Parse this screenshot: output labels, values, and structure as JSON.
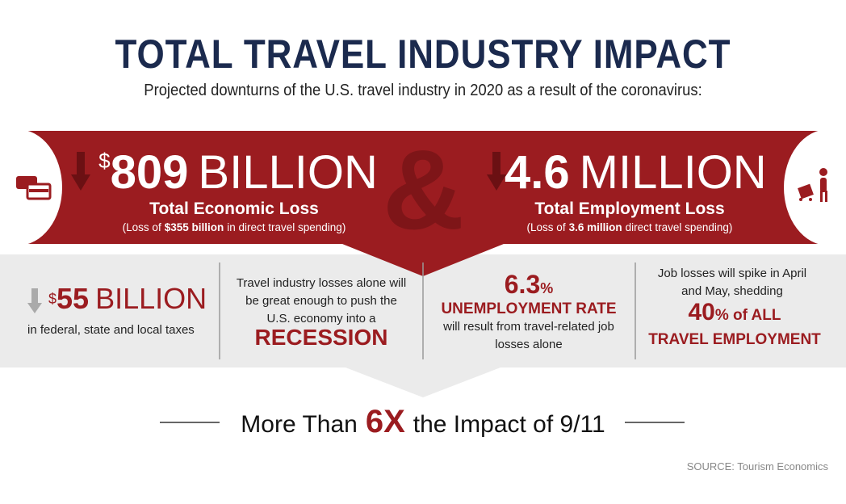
{
  "header": {
    "title": "TOTAL TRAVEL INDUSTRY IMPACT",
    "subtitle": "Projected downturns of the U.S. travel industry in 2020 as a result of the coronavirus:"
  },
  "banner": {
    "left": {
      "currency": "$",
      "amount": "809",
      "unit": "BILLION",
      "label": "Total Economic Loss",
      "note_start": "(Loss of",
      "note_bold": "$355 billion",
      "note_end": "in direct travel spending)"
    },
    "connector": "&",
    "right": {
      "amount": "4.6",
      "unit": "MILLION",
      "label": "Total Employment Loss",
      "note_start": "(Loss of",
      "note_bold": "3.6 million",
      "note_end": "direct travel spending)"
    }
  },
  "panels": [
    {
      "currency": "$",
      "amount": "55",
      "unit": "BILLION",
      "text": "in federal, state and local taxes"
    },
    {
      "text": "Travel industry losses alone will be great enough to push the U.S. economy into a",
      "highlight": "RECESSION"
    },
    {
      "amount": "6.3",
      "unit": "%",
      "highlight": "UNEMPLOYMENT RATE",
      "text": "will result from travel-related job losses alone"
    },
    {
      "text": "Job losses will spike in April and May, shedding",
      "amount": "40",
      "unit": "% of ALL",
      "highlight": "TRAVEL EMPLOYMENT"
    }
  ],
  "footer": {
    "start": "More Than",
    "highlight": "6X",
    "end": "the Impact of 9/11",
    "source": "SOURCE: Tourism Economics"
  }
}
